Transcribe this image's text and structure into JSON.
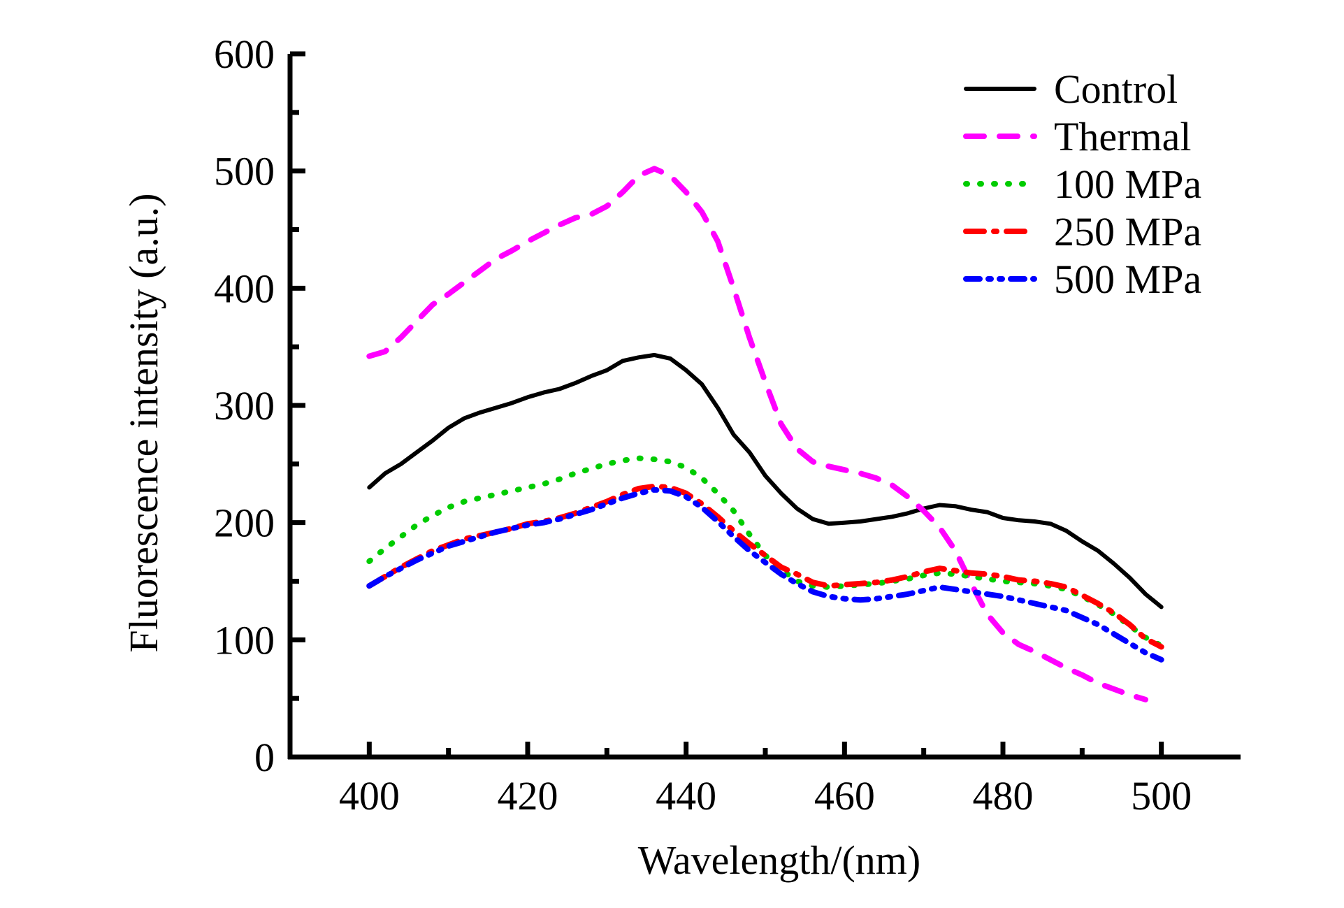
{
  "chart_data": {
    "type": "line",
    "title": "",
    "xlabel": "Wavelength/(nm)",
    "ylabel": "Fluorescence intensity (a.u.)",
    "xlim": [
      390,
      510
    ],
    "ylim": [
      0,
      600
    ],
    "x_ticks": [
      400,
      420,
      440,
      460,
      480,
      500
    ],
    "y_ticks": [
      0,
      100,
      200,
      300,
      400,
      500,
      600
    ],
    "x_tick_labels": [
      "400",
      "420",
      "440",
      "460",
      "480",
      "500"
    ],
    "y_tick_labels": [
      "0",
      "100",
      "200",
      "300",
      "400",
      "500",
      "600"
    ],
    "grid": false,
    "legend_position": "top-right",
    "x": [
      400,
      402,
      404,
      406,
      408,
      410,
      412,
      414,
      416,
      418,
      420,
      422,
      424,
      426,
      428,
      430,
      432,
      434,
      436,
      438,
      440,
      442,
      444,
      446,
      448,
      450,
      452,
      454,
      456,
      458,
      460,
      462,
      464,
      466,
      468,
      470,
      472,
      474,
      476,
      478,
      480,
      482,
      484,
      486,
      488,
      490,
      492,
      494,
      496,
      498,
      500
    ],
    "series": [
      {
        "name": "Control",
        "color": "#000000",
        "style": "solid",
        "values": [
          230,
          242,
          250,
          260,
          270,
          281,
          289,
          294,
          298,
          302,
          307,
          311,
          314,
          319,
          325,
          330,
          338,
          341,
          343,
          340,
          330,
          318,
          298,
          275,
          260,
          240,
          225,
          212,
          203,
          199,
          200,
          201,
          203,
          205,
          208,
          212,
          215,
          214,
          211,
          209,
          204,
          202,
          201,
          199,
          193,
          184,
          176,
          165,
          153,
          139,
          128
        ]
      },
      {
        "name": "Thermal",
        "color": "#ff00ff",
        "style": "dashed",
        "values": [
          342,
          346,
          358,
          372,
          386,
          395,
          405,
          415,
          425,
          432,
          440,
          447,
          454,
          460,
          463,
          470,
          482,
          496,
          502,
          496,
          482,
          465,
          440,
          400,
          358,
          320,
          284,
          263,
          252,
          248,
          245,
          242,
          238,
          232,
          222,
          210,
          196,
          176,
          148,
          122,
          106,
          96,
          90,
          83,
          76,
          70,
          63,
          58,
          53,
          49,
          null
        ]
      },
      {
        "name": "100 MPa",
        "color": "#00cc00",
        "style": "dotted",
        "values": [
          167,
          178,
          188,
          198,
          206,
          213,
          218,
          221,
          224,
          227,
          230,
          233,
          237,
          242,
          246,
          250,
          253,
          255,
          254,
          252,
          247,
          238,
          225,
          210,
          190,
          172,
          160,
          150,
          146,
          145,
          146,
          147,
          148,
          150,
          152,
          155,
          157,
          156,
          154,
          152,
          150,
          149,
          148,
          146,
          143,
          137,
          130,
          122,
          112,
          102,
          95
        ]
      },
      {
        "name": "250 MPa",
        "color": "#ff0000",
        "style": "dash-dot",
        "values": [
          146,
          154,
          162,
          169,
          176,
          181,
          186,
          189,
          192,
          195,
          199,
          201,
          204,
          208,
          213,
          218,
          224,
          229,
          231,
          230,
          225,
          216,
          205,
          193,
          182,
          172,
          162,
          156,
          149,
          146,
          147,
          148,
          149,
          151,
          154,
          158,
          161,
          159,
          157,
          156,
          154,
          151,
          150,
          148,
          145,
          138,
          131,
          123,
          113,
          101,
          94
        ]
      },
      {
        "name": "500 MPa",
        "color": "#0000ff",
        "style": "dash-dot-dot",
        "values": [
          146,
          154,
          161,
          168,
          174,
          180,
          184,
          188,
          192,
          195,
          198,
          200,
          203,
          207,
          211,
          216,
          221,
          225,
          228,
          227,
          222,
          213,
          201,
          188,
          176,
          166,
          156,
          148,
          141,
          137,
          135,
          134,
          135,
          137,
          139,
          142,
          145,
          143,
          141,
          139,
          137,
          134,
          131,
          128,
          125,
          119,
          113,
          105,
          97,
          89,
          83
        ]
      }
    ]
  }
}
